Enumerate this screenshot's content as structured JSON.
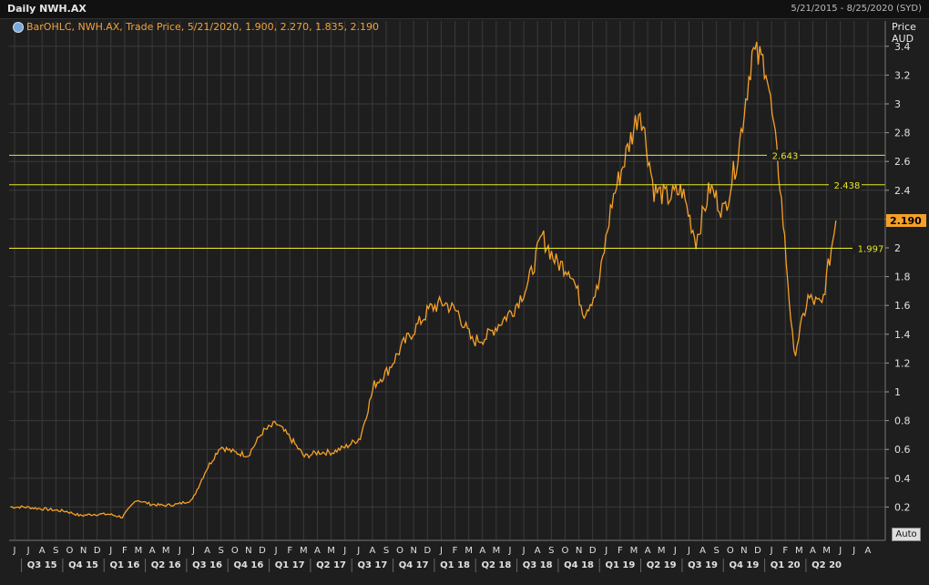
{
  "window": {
    "title": "Daily NWH.AX",
    "date_range": "5/21/2015 - 8/25/2020 (SYD)",
    "legend": "BarOHLC, NWH.AX, Trade Price, 5/21/2020, 1.900, 2.270, 1.835, 2.190",
    "axis_units_line1": "Price",
    "axis_units_line2": "AUD",
    "auto_button": "Auto"
  },
  "colors": {
    "background": "#1e1e1e",
    "grid": "#3a3a3a",
    "price_line": "#f5a028",
    "level_line": "#e6e62a",
    "last_price_tag": "#f5a028",
    "axis_text": "#e0e0e0"
  },
  "chart_data": {
    "type": "line",
    "title": "Daily NWH.AX",
    "xlabel": "",
    "ylabel": "Price AUD",
    "ylim": [
      0,
      3.4
    ],
    "y_ticks": [
      "0.2",
      "0.4",
      "0.6",
      "0.8",
      "1",
      "1.2",
      "1.4",
      "1.6",
      "1.8",
      "2",
      "2.2",
      "2.4",
      "2.6",
      "2.8",
      "3",
      "3.2",
      "3.4"
    ],
    "grid": true,
    "x_month_labels": [
      "J",
      "J",
      "A",
      "S",
      "O",
      "N",
      "D",
      "J",
      "F",
      "M",
      "A",
      "M",
      "J",
      "J",
      "A",
      "S",
      "O",
      "N",
      "D",
      "J",
      "F",
      "M",
      "A",
      "M",
      "J",
      "J",
      "A",
      "S",
      "O",
      "N",
      "D",
      "J",
      "F",
      "M",
      "A",
      "M",
      "J",
      "J",
      "A",
      "S",
      "O",
      "N",
      "D",
      "J",
      "F",
      "M",
      "A",
      "M",
      "J",
      "J",
      "A",
      "S",
      "O",
      "N",
      "D",
      "J",
      "F",
      "M",
      "A",
      "M",
      "J",
      "J",
      "A"
    ],
    "x_quarter_labels": [
      "Q3 15",
      "Q4 15",
      "Q1 16",
      "Q2 16",
      "Q3 16",
      "Q4 16",
      "Q1 17",
      "Q2 17",
      "Q3 17",
      "Q4 17",
      "Q1 18",
      "Q2 18",
      "Q3 18",
      "Q4 18",
      "Q1 19",
      "Q2 19",
      "Q3 19",
      "Q4 19",
      "Q1 20",
      "Q2 20"
    ],
    "series": [
      {
        "values_start": "2015-05-21",
        "values_step": "1 month",
        "values": [
          0.2,
          0.2,
          0.19,
          0.18,
          0.17,
          0.14,
          0.15,
          0.15,
          0.13,
          0.25,
          0.22,
          0.21,
          0.22,
          0.25,
          0.46,
          0.62,
          0.58,
          0.56,
          0.72,
          0.78,
          0.68,
          0.55,
          0.58,
          0.58,
          0.62,
          0.68,
          1.05,
          1.15,
          1.32,
          1.45,
          1.58,
          1.62,
          1.55,
          1.35,
          1.38,
          1.48,
          1.58,
          1.75,
          2.08,
          1.9,
          1.85,
          1.55,
          1.72,
          2.32,
          2.65,
          2.98,
          2.4,
          2.35,
          2.4,
          2.05,
          2.42,
          2.25,
          2.65,
          3.35,
          3.28,
          2.45,
          1.25,
          1.65,
          1.6,
          2.19
        ]
      }
    ],
    "horizontal_levels": [
      {
        "value": 2.643,
        "label": "2.643"
      },
      {
        "value": 2.438,
        "label": "2.438"
      },
      {
        "value": 1.997,
        "label": "1.997"
      }
    ],
    "last_price": "2.190"
  }
}
